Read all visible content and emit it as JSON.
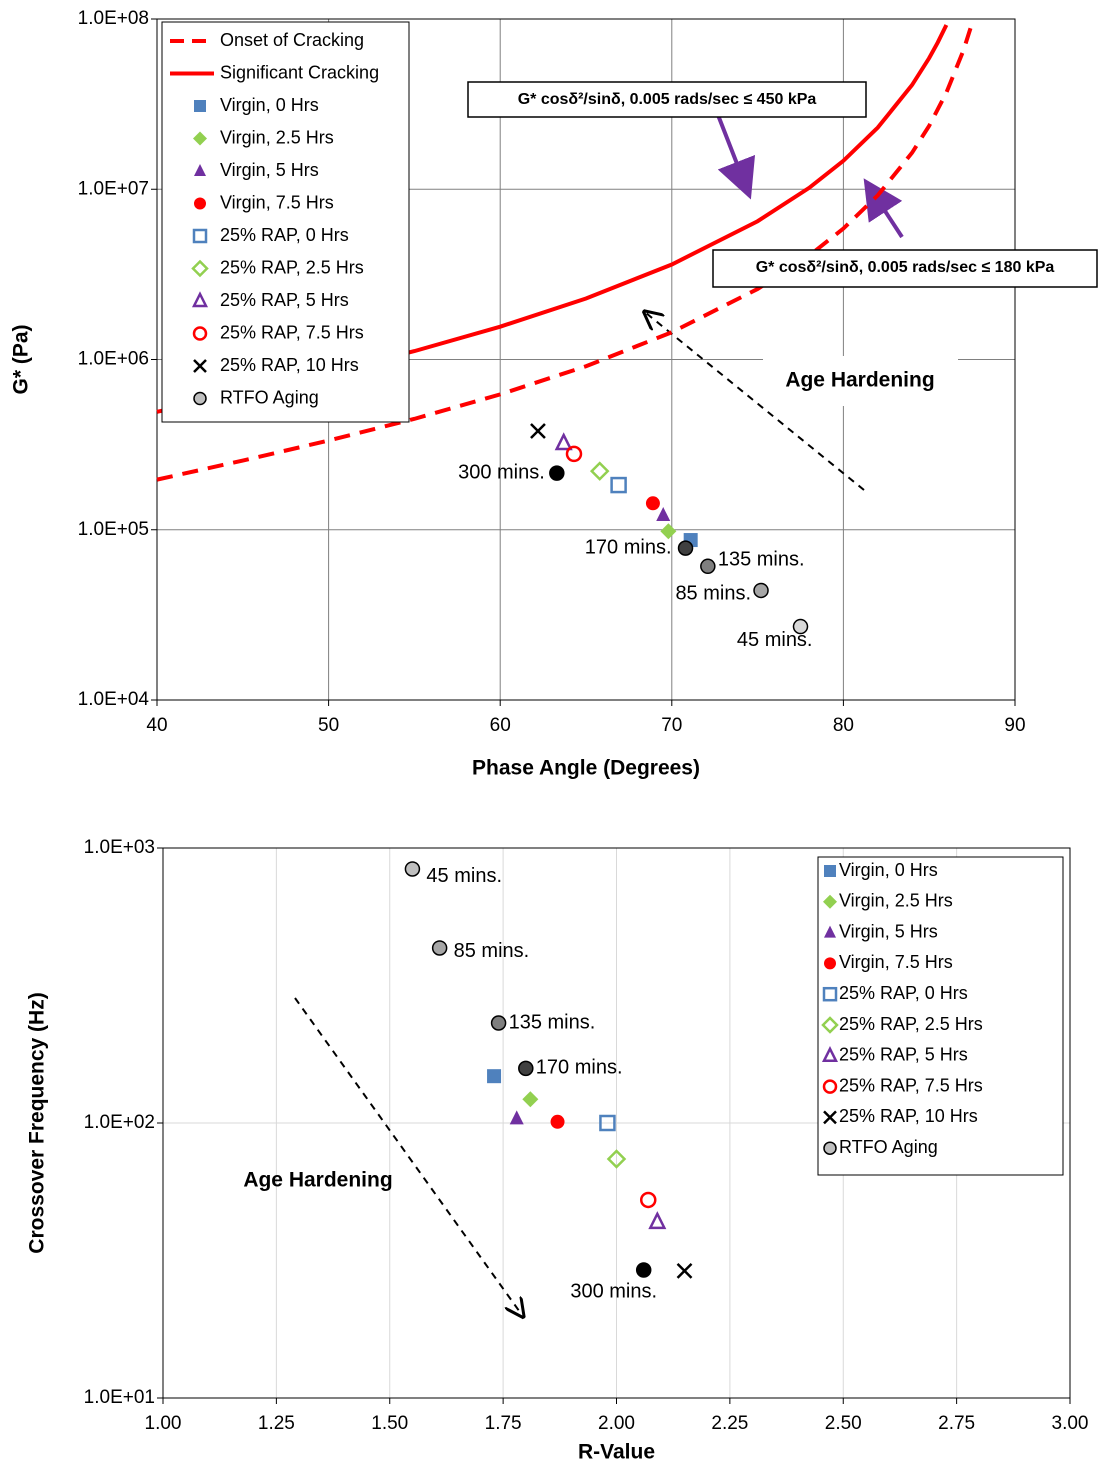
{
  "chart_data": [
    {
      "type": "scatter",
      "xlabel": "Phase Angle (Degrees)",
      "ylabel": "G* (Pa)",
      "xlim": [
        40,
        90
      ],
      "ylim": [
        10000,
        100000000
      ],
      "log_y": true,
      "grid": true,
      "legend": "upper left",
      "xticks": [
        40,
        50,
        60,
        70,
        80,
        90
      ],
      "yticks": [
        {
          "value": 10000,
          "label": "1.0E+04"
        },
        {
          "value": 100000,
          "label": "1.0E+05"
        },
        {
          "value": 1000000,
          "label": "1.0E+06"
        },
        {
          "value": 10000000,
          "label": "1.0E+07"
        },
        {
          "value": 100000000,
          "label": "1.0E+08"
        }
      ],
      "series": [
        {
          "name": "Onset of Cracking",
          "type": "line",
          "dash": true,
          "color": "#ff0000",
          "x": [
            40,
            45,
            50,
            55,
            60,
            65,
            70,
            75,
            78,
            80,
            82,
            84,
            85,
            86,
            87,
            87.5
          ],
          "values": [
            197000,
            255000,
            334000,
            448000,
            624000,
            913000,
            1446000,
            2596000,
            4073000,
            5879000,
            9203000,
            16380000,
            23600000,
            36900000,
            65600000,
            94500000
          ]
        },
        {
          "name": "Significant Cracking",
          "type": "line",
          "dash": false,
          "color": "#ff0000",
          "x": [
            40,
            45,
            50,
            55,
            60,
            65,
            70,
            75,
            78,
            80,
            82,
            84,
            85,
            85.5,
            86
          ],
          "values": [
            493000,
            636000,
            834000,
            1120000,
            1559000,
            2283000,
            3614000,
            6489000,
            10180000,
            14700000,
            23010000,
            40950000,
            59000000,
            72860000,
            92250000
          ]
        },
        {
          "name": "Virgin, 0 Hrs",
          "marker": "square",
          "filled": true,
          "color": "#4f81bd",
          "x": [
            71.1
          ],
          "values": [
            87000
          ]
        },
        {
          "name": "Virgin, 2.5 Hrs",
          "marker": "diamond",
          "filled": true,
          "color": "#92d050",
          "x": [
            69.8
          ],
          "values": [
            98000
          ]
        },
        {
          "name": "Virgin, 5 Hrs",
          "marker": "triangle",
          "filled": true,
          "color": "#7030a0",
          "x": [
            69.5
          ],
          "values": [
            122000
          ]
        },
        {
          "name": "Virgin, 7.5 Hrs",
          "marker": "circle",
          "filled": true,
          "color": "#ff0000",
          "x": [
            68.9
          ],
          "values": [
            143000
          ]
        },
        {
          "name": "25% RAP, 0 Hrs",
          "marker": "square",
          "filled": false,
          "color": "#4f81bd",
          "x": [
            66.9
          ],
          "values": [
            183000
          ]
        },
        {
          "name": "25% RAP, 2.5 Hrs",
          "marker": "diamond",
          "filled": false,
          "color": "#92d050",
          "x": [
            65.8
          ],
          "values": [
            221000
          ]
        },
        {
          "name": "25% RAP, 5 Hrs",
          "marker": "triangle",
          "filled": false,
          "color": "#7030a0",
          "x": [
            63.7
          ],
          "values": [
            323000
          ]
        },
        {
          "name": "25% RAP, 7.5 Hrs",
          "marker": "circle",
          "filled": false,
          "color": "#ff0000",
          "x": [
            64.3
          ],
          "values": [
            279000
          ]
        },
        {
          "name": "25% RAP, 10 Hrs",
          "marker": "x",
          "filled": false,
          "color": "#000000",
          "x": [
            62.2
          ],
          "values": [
            380000
          ]
        },
        {
          "name": "RTFO Aging",
          "marker": "circle",
          "filled": true,
          "color": "#bfbfbf",
          "edgecolor": "#000000",
          "colors": [
            "#000000",
            "#404040",
            "#7f7f7f",
            "#a6a6a6",
            "#d9d9d9"
          ],
          "x": [
            63.3,
            70.8,
            72.1,
            75.2,
            77.5
          ],
          "values": [
            215000,
            78000,
            61000,
            44000,
            27000
          ],
          "point_labels": [
            "300 mins.",
            "170 mins.",
            "135 mins.",
            "85 mins.",
            "45 mins."
          ]
        }
      ],
      "annotations": [
        "G* cosδ²/sinδ, 0.005 rads/sec ≤ 450 kPa",
        "G* cosδ²/sinδ, 0.005 rads/sec ≤ 180 kPa",
        "Age Hardening"
      ]
    },
    {
      "type": "scatter",
      "xlabel": "R-Value",
      "ylabel": "Crossover Frequency (Hz)",
      "xlim": [
        1,
        3
      ],
      "ylim": [
        10,
        1000
      ],
      "log_y": true,
      "grid": true,
      "legend": "upper right",
      "xticks": [
        {
          "value": 1,
          "label": "1.00"
        },
        {
          "value": 1.25,
          "label": "1.25"
        },
        {
          "value": 1.5,
          "label": "1.50"
        },
        {
          "value": 1.75,
          "label": "1.75"
        },
        {
          "value": 2,
          "label": "2.00"
        },
        {
          "value": 2.25,
          "label": "2.25"
        },
        {
          "value": 2.5,
          "label": "2.50"
        },
        {
          "value": 2.75,
          "label": "2.75"
        },
        {
          "value": 3,
          "label": "3.00"
        }
      ],
      "yticks": [
        {
          "value": 10,
          "label": "1.0E+01"
        },
        {
          "value": 100,
          "label": "1.0E+02"
        },
        {
          "value": 1000,
          "label": "1.0E+03"
        }
      ],
      "series": [
        {
          "name": "Virgin, 0 Hrs",
          "marker": "square",
          "filled": true,
          "color": "#4f81bd",
          "x": [
            1.73
          ],
          "values": [
            148
          ]
        },
        {
          "name": "Virgin, 2.5 Hrs",
          "marker": "diamond",
          "filled": true,
          "color": "#92d050",
          "x": [
            1.81
          ],
          "values": [
            122
          ]
        },
        {
          "name": "Virgin, 5 Hrs",
          "marker": "triangle",
          "filled": true,
          "color": "#7030a0",
          "x": [
            1.78
          ],
          "values": [
            104
          ]
        },
        {
          "name": "Virgin, 7.5 Hrs",
          "marker": "circle",
          "filled": true,
          "color": "#ff0000",
          "x": [
            1.87
          ],
          "values": [
            101
          ]
        },
        {
          "name": "25% RAP, 0 Hrs",
          "marker": "square",
          "filled": false,
          "color": "#4f81bd",
          "x": [
            1.98
          ],
          "values": [
            100
          ]
        },
        {
          "name": "25% RAP, 2.5 Hrs",
          "marker": "diamond",
          "filled": false,
          "color": "#92d050",
          "x": [
            2.0
          ],
          "values": [
            74
          ]
        },
        {
          "name": "25% RAP, 5 Hrs",
          "marker": "triangle",
          "filled": false,
          "color": "#7030a0",
          "x": [
            2.09
          ],
          "values": [
            43.7
          ]
        },
        {
          "name": "25% RAP, 7.5 Hrs",
          "marker": "circle",
          "filled": false,
          "color": "#ff0000",
          "x": [
            2.07
          ],
          "values": [
            52.5
          ]
        },
        {
          "name": "25% RAP, 10 Hrs",
          "marker": "x",
          "filled": false,
          "color": "#000000",
          "x": [
            2.15
          ],
          "values": [
            29
          ]
        },
        {
          "name": "RTFO Aging",
          "marker": "circle",
          "filled": true,
          "color": "#bfbfbf",
          "edgecolor": "#000000",
          "colors": [
            "#bfbfbf",
            "#a6a6a6",
            "#7f7f7f",
            "#404040",
            "#000000"
          ],
          "x": [
            1.55,
            1.61,
            1.74,
            1.8,
            2.06
          ],
          "values": [
            839,
            433,
            231,
            158,
            29.2
          ],
          "point_labels": [
            "45 mins.",
            "85 mins.",
            "135 mins.",
            "170 mins.",
            "300 mins."
          ]
        }
      ],
      "annotations": [
        "Age Hardening"
      ]
    }
  ]
}
